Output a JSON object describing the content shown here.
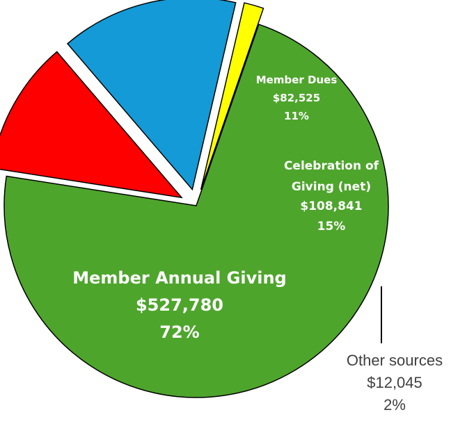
{
  "chart_data": {
    "type": "pie",
    "title": "",
    "exploded": true,
    "slices": [
      {
        "name": "Member Annual Giving",
        "amount": "$527,780",
        "percent_label": "72%",
        "value": 527780,
        "color": "#4ea52c"
      },
      {
        "name": "Member Dues",
        "amount": "$82,525",
        "percent_label": "11%",
        "value": 82525,
        "color": "#ff0000"
      },
      {
        "name": "Celebration of Giving (net)",
        "name_lines": [
          "Celebration of",
          "Giving (net)"
        ],
        "amount": "$108,841",
        "percent_label": "15%",
        "value": 108841,
        "color": "#149ad6"
      },
      {
        "name": "Other sources",
        "amount": "$12,045",
        "percent_label": "2%",
        "value": 12045,
        "color": "#ffff00"
      }
    ]
  }
}
